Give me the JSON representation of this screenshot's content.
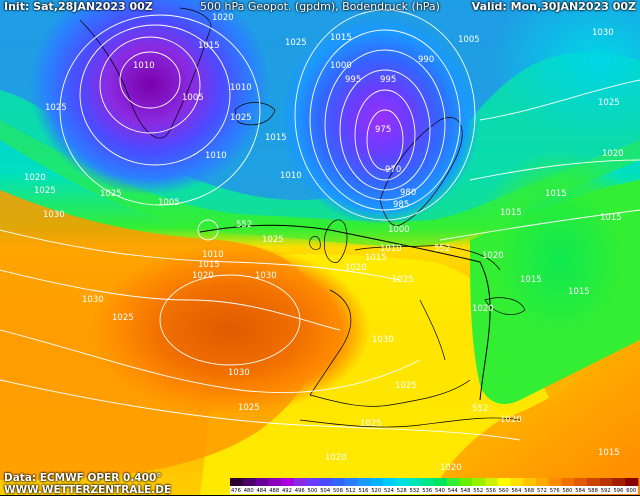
{
  "header": {
    "init": "Init: Sat,28JAN2023 00Z",
    "title": "500 hPa Geopot. (gpdm), Bodendruck (hPa)",
    "valid": "Valid: Mon,30JAN2023 00Z"
  },
  "footer": {
    "data": "Data: ECMWF OPER 0.400°",
    "site": "WWW.WETTERZENTRALE.DE"
  },
  "isobar_labels": [
    {
      "text": "1020",
      "pos": "top center"
    },
    {
      "text": "1015"
    },
    {
      "text": "1010"
    },
    {
      "text": "1005"
    },
    {
      "text": "1025"
    },
    {
      "text": "1030"
    },
    {
      "text": "1000"
    },
    {
      "text": "995"
    },
    {
      "text": "990"
    },
    {
      "text": "985"
    },
    {
      "text": "980"
    },
    {
      "text": "975"
    },
    {
      "text": "970"
    }
  ],
  "geopotential_label": "552",
  "colorbar": {
    "ticks": [
      "476",
      "480",
      "484",
      "488",
      "492",
      "496",
      "500",
      "504",
      "508",
      "512",
      "516",
      "520",
      "524",
      "528",
      "532",
      "536",
      "540",
      "544",
      "548",
      "552",
      "556",
      "560",
      "564",
      "568",
      "572",
      "576",
      "580",
      "584",
      "588",
      "592",
      "596",
      "600"
    ],
    "colors": [
      "#2a0033",
      "#4a0066",
      "#6a0099",
      "#8a00bb",
      "#aa00dd",
      "#8a2be2",
      "#6a3cff",
      "#4b4bff",
      "#3366ff",
      "#2b7fff",
      "#1a99ff",
      "#00b2ff",
      "#00ccff",
      "#00e0e0",
      "#00e6b8",
      "#00e68a",
      "#00e65c",
      "#33ee33",
      "#66f000",
      "#99f000",
      "#ccf000",
      "#ffff00",
      "#ffe000",
      "#ffc400",
      "#ffa800",
      "#ff8c00",
      "#f07000",
      "#e05a00",
      "#cc4400",
      "#b83300",
      "#a02000",
      "#880000"
    ]
  },
  "colors": {
    "low_core": "#6a0099",
    "cold_blue": "#3366ff",
    "cyan": "#00ccff",
    "green": "#33ee33",
    "yellow": "#ffee00",
    "orange": "#ff8c00",
    "dark_orange": "#e05a00"
  }
}
